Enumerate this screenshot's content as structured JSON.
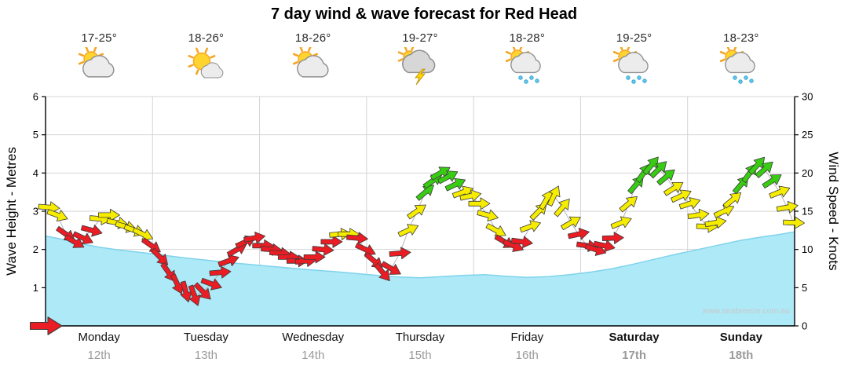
{
  "title": "7 day wind & wave forecast for Red Head",
  "watermark": "www.seabreeze.com.au",
  "axes": {
    "wave_title": "Wave Height - Metres",
    "wind_title": "Wind Speed - Knots",
    "wave_ticks": [
      0,
      1,
      2,
      3,
      4,
      5,
      6
    ],
    "wind_ticks": [
      0,
      5,
      10,
      15,
      20,
      25,
      30
    ]
  },
  "days": [
    {
      "name": "Monday",
      "date": "12th",
      "temp": "17-25°",
      "icon": "partly-cloudy",
      "bold": false
    },
    {
      "name": "Tuesday",
      "date": "13th",
      "temp": "18-26°",
      "icon": "mostly-sunny",
      "bold": false
    },
    {
      "name": "Wednesday",
      "date": "14th",
      "temp": "18-26°",
      "icon": "partly-cloudy",
      "bold": false
    },
    {
      "name": "Thursday",
      "date": "15th",
      "temp": "19-27°",
      "icon": "thunderstorm",
      "bold": false
    },
    {
      "name": "Friday",
      "date": "16th",
      "temp": "18-28°",
      "icon": "showers",
      "bold": false
    },
    {
      "name": "Saturday",
      "date": "17th",
      "temp": "19-25°",
      "icon": "showers",
      "bold": true
    },
    {
      "name": "Sunday",
      "date": "18th",
      "temp": "18-23°",
      "icon": "showers",
      "bold": true
    }
  ],
  "colors": {
    "wave_fill": "#aee9f7",
    "wave_edge": "#7fd3ec",
    "grid": "#d4d4d4",
    "arrow": {
      "r": "#ea1c24",
      "y": "#f6ec00",
      "g": "#38cc12"
    }
  },
  "chart_data": {
    "type": "area",
    "title": "7 day wind & wave forecast for Red Head",
    "x_axis": {
      "labels": [
        "Monday 12th",
        "Tuesday 13th",
        "Wednesday 14th",
        "Thursday 15th",
        "Friday 16th",
        "Saturday 17th",
        "Sunday 18th"
      ],
      "range_days": [
        0,
        7
      ]
    },
    "wave_height": {
      "name": "Wave Height",
      "units": "metres",
      "ylim": [
        0,
        6
      ],
      "points": [
        [
          0,
          2.35
        ],
        [
          0.15,
          2.27
        ],
        [
          0.3,
          2.17
        ],
        [
          0.5,
          2.06
        ],
        [
          0.7,
          1.98
        ],
        [
          0.9,
          1.92
        ],
        [
          1.1,
          1.85
        ],
        [
          1.3,
          1.78
        ],
        [
          1.5,
          1.72
        ],
        [
          1.7,
          1.66
        ],
        [
          1.9,
          1.61
        ],
        [
          2.1,
          1.56
        ],
        [
          2.3,
          1.51
        ],
        [
          2.5,
          1.46
        ],
        [
          2.7,
          1.42
        ],
        [
          2.9,
          1.37
        ],
        [
          3.1,
          1.32
        ],
        [
          3.3,
          1.28
        ],
        [
          3.5,
          1.26
        ],
        [
          3.7,
          1.29
        ],
        [
          3.9,
          1.32
        ],
        [
          4.1,
          1.34
        ],
        [
          4.3,
          1.3
        ],
        [
          4.5,
          1.27
        ],
        [
          4.7,
          1.29
        ],
        [
          4.9,
          1.34
        ],
        [
          5.1,
          1.41
        ],
        [
          5.3,
          1.5
        ],
        [
          5.5,
          1.62
        ],
        [
          5.7,
          1.75
        ],
        [
          5.9,
          1.88
        ],
        [
          6.1,
          2.0
        ],
        [
          6.3,
          2.12
        ],
        [
          6.5,
          2.24
        ],
        [
          6.7,
          2.33
        ],
        [
          6.85,
          2.39
        ],
        [
          7,
          2.46
        ]
      ]
    },
    "wind": {
      "name": "Wind Speed",
      "units": "knots",
      "ylim": [
        0,
        30
      ],
      "arrow_format": "[day_offset, knots, rotation_deg, color r|y|g]",
      "arrows": [
        [
          0.03,
          15.5,
          5,
          "y"
        ],
        [
          0.11,
          14.5,
          20,
          "y"
        ],
        [
          0.19,
          12,
          35,
          "r"
        ],
        [
          0.27,
          11,
          30,
          "r"
        ],
        [
          0.35,
          11.5,
          25,
          "r"
        ],
        [
          0.43,
          12.5,
          15,
          "r"
        ],
        [
          0.51,
          14,
          5,
          "y"
        ],
        [
          0.59,
          14.5,
          0,
          "y"
        ],
        [
          0.67,
          13.5,
          10,
          "y"
        ],
        [
          0.75,
          13,
          15,
          "y"
        ],
        [
          0.83,
          12.5,
          20,
          "y"
        ],
        [
          0.91,
          12,
          25,
          "y"
        ],
        [
          0.99,
          10.5,
          35,
          "r"
        ],
        [
          1.07,
          9,
          45,
          "r"
        ],
        [
          1.15,
          7,
          55,
          "r"
        ],
        [
          1.23,
          5.5,
          65,
          "r"
        ],
        [
          1.31,
          4.5,
          75,
          "r"
        ],
        [
          1.39,
          4,
          70,
          "r"
        ],
        [
          1.47,
          4.5,
          45,
          "r"
        ],
        [
          1.55,
          5.5,
          20,
          "r"
        ],
        [
          1.63,
          7,
          -5,
          "r"
        ],
        [
          1.71,
          8.5,
          -20,
          "r"
        ],
        [
          1.79,
          10,
          -30,
          "r"
        ],
        [
          1.87,
          11,
          -25,
          "r"
        ],
        [
          1.95,
          11.5,
          -10,
          "r"
        ],
        [
          2.03,
          10.5,
          0,
          "r"
        ],
        [
          2.11,
          10,
          5,
          "r"
        ],
        [
          2.19,
          9.5,
          5,
          "r"
        ],
        [
          2.27,
          9,
          0,
          "r"
        ],
        [
          2.35,
          8.5,
          0,
          "r"
        ],
        [
          2.43,
          8.5,
          -5,
          "r"
        ],
        [
          2.51,
          9,
          0,
          "r"
        ],
        [
          2.59,
          10,
          5,
          "r"
        ],
        [
          2.67,
          11,
          0,
          "r"
        ],
        [
          2.75,
          12,
          -5,
          "y"
        ],
        [
          2.83,
          12,
          0,
          "y"
        ],
        [
          2.91,
          11.5,
          5,
          "r"
        ],
        [
          2.99,
          10,
          25,
          "r"
        ],
        [
          3.07,
          8.5,
          40,
          "r"
        ],
        [
          3.15,
          7,
          50,
          "r"
        ],
        [
          3.23,
          7.5,
          30,
          "r"
        ],
        [
          3.31,
          9.5,
          -5,
          "r"
        ],
        [
          3.39,
          12.5,
          -25,
          "y"
        ],
        [
          3.47,
          15,
          -35,
          "y"
        ],
        [
          3.55,
          17.5,
          -40,
          "g"
        ],
        [
          3.62,
          19,
          -35,
          "g"
        ],
        [
          3.69,
          20,
          -30,
          "g"
        ],
        [
          3.76,
          19.5,
          -28,
          "g"
        ],
        [
          3.83,
          18.5,
          -25,
          "g"
        ],
        [
          3.9,
          17.5,
          -20,
          "y"
        ],
        [
          3.97,
          17,
          -12,
          "y"
        ],
        [
          4.05,
          16,
          0,
          "y"
        ],
        [
          4.13,
          14.5,
          15,
          "y"
        ],
        [
          4.21,
          12.5,
          28,
          "y"
        ],
        [
          4.29,
          11,
          30,
          "r"
        ],
        [
          4.37,
          10.5,
          22,
          "r"
        ],
        [
          4.45,
          11,
          8,
          "r"
        ],
        [
          4.53,
          13,
          -20,
          "y"
        ],
        [
          4.61,
          15,
          -45,
          "y"
        ],
        [
          4.68,
          16.5,
          -60,
          "y"
        ],
        [
          4.75,
          17,
          -65,
          "y"
        ],
        [
          4.83,
          15.5,
          -50,
          "y"
        ],
        [
          4.91,
          13.5,
          -30,
          "y"
        ],
        [
          4.98,
          12,
          -12,
          "r"
        ],
        [
          5.06,
          10.5,
          8,
          "r"
        ],
        [
          5.14,
          10,
          18,
          "r"
        ],
        [
          5.22,
          10.5,
          12,
          "r"
        ],
        [
          5.3,
          11.5,
          -2,
          "r"
        ],
        [
          5.38,
          13.5,
          -22,
          "y"
        ],
        [
          5.45,
          16,
          -40,
          "y"
        ],
        [
          5.52,
          18.5,
          -50,
          "g"
        ],
        [
          5.59,
          20,
          -55,
          "g"
        ],
        [
          5.66,
          21,
          -50,
          "g"
        ],
        [
          5.73,
          20.5,
          -45,
          "g"
        ],
        [
          5.8,
          19.5,
          -40,
          "g"
        ],
        [
          5.87,
          18,
          -32,
          "y"
        ],
        [
          5.94,
          17,
          -25,
          "y"
        ],
        [
          6.02,
          16,
          -18,
          "y"
        ],
        [
          6.1,
          14.5,
          -8,
          "y"
        ],
        [
          6.18,
          13,
          2,
          "y"
        ],
        [
          6.26,
          13.5,
          -10,
          "y"
        ],
        [
          6.34,
          15,
          -25,
          "y"
        ],
        [
          6.42,
          16.5,
          -40,
          "y"
        ],
        [
          6.5,
          18.5,
          -50,
          "g"
        ],
        [
          6.58,
          20,
          -55,
          "g"
        ],
        [
          6.65,
          21,
          -48,
          "g"
        ],
        [
          6.72,
          20.5,
          -42,
          "g"
        ],
        [
          6.79,
          19,
          -33,
          "g"
        ],
        [
          6.86,
          17.5,
          -22,
          "y"
        ],
        [
          6.93,
          15.5,
          -10,
          "y"
        ],
        [
          6.99,
          13.5,
          2,
          "y"
        ]
      ]
    },
    "start_marker": {
      "t": 0,
      "kn": 0,
      "rot": 0,
      "color": "r"
    }
  }
}
